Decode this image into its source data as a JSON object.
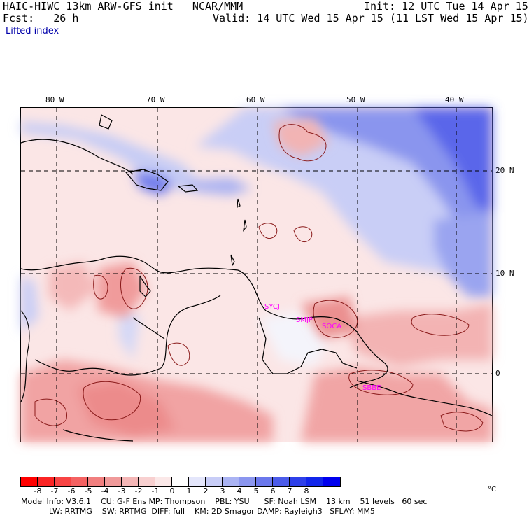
{
  "header": {
    "model_line": "HAIC-HIWC 13km ARW-GFS init   NCAR/MMM",
    "init_line": "Init: 12 UTC Tue 14 Apr 15",
    "fcst_line": "Fcst:   26 h",
    "valid_line": "Valid: 14 UTC Wed 15 Apr 15 (11 LST Wed 15 Apr 15)",
    "field_name": "Lifted index"
  },
  "map": {
    "lon_labels": [
      "80 W",
      "70 W",
      "60 W",
      "50 W",
      "40 W"
    ],
    "lat_labels": [
      "20 N",
      "10 N",
      "0"
    ],
    "stations": [
      "SYCJ",
      "SMJP",
      "SOCA",
      "SBBE"
    ],
    "colors": {
      "positive_strong": "#4a55e8",
      "positive_weak": "#c8cff5",
      "negative_weak": "#f8d0d0",
      "negative_strong": "#e98585",
      "station": "#ff00ff"
    }
  },
  "colorbar": {
    "labels": [
      "-8",
      "-7",
      "-6",
      "-5",
      "-4",
      "-3",
      "-2",
      "-1",
      "0",
      "1",
      "2",
      "3",
      "4",
      "5",
      "6",
      "7",
      "8"
    ],
    "colors": [
      "#ff0000",
      "#fb2424",
      "#f84444",
      "#f46262",
      "#f17f7f",
      "#f09a9a",
      "#f4b6b6",
      "#f8d0d0",
      "#fbe8e8",
      "#ffffff",
      "#e4e6fb",
      "#c8cdf7",
      "#aab3f3",
      "#8b96ef",
      "#6b78ec",
      "#4c5cea",
      "#2e40e9",
      "#1226ea",
      "#0000ee"
    ],
    "unit": "°C"
  },
  "footer": {
    "line1": "Model Info: V3.6.1    CU: G-F Ens MP: Thompson    PBL: YSU      SF: Noah LSM    13 km    51 levels   60 sec",
    "line2": "LW: RRTMG    SW: RRTMG  DIFF: full    KM: 2D Smagor DAMP: Rayleigh3   SFLAY: MM5"
  }
}
